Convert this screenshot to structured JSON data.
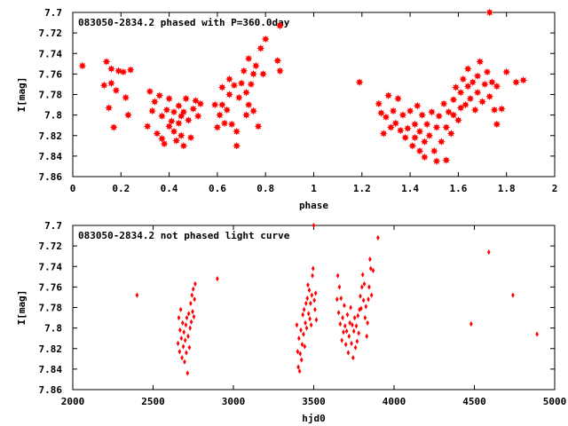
{
  "chart_data": [
    {
      "type": "scatter",
      "title": "083050-2834.2 phased with P=360.0day",
      "xlabel": "phase",
      "ylabel": "I[mag]",
      "xlim": [
        0,
        2
      ],
      "ylim": [
        7.7,
        7.86
      ],
      "y_inverted": true,
      "xticks": [
        0,
        0.2,
        0.4,
        0.6,
        0.8,
        1,
        1.2,
        1.4,
        1.6,
        1.8,
        2
      ],
      "xtick_labels": [
        "0",
        "0.2",
        "0.4",
        "0.6",
        "0.8",
        "1",
        "1.2",
        "1.4",
        "1.6",
        "1.8",
        "2"
      ],
      "yticks": [
        7.7,
        7.72,
        7.74,
        7.76,
        7.78,
        7.8,
        7.82,
        7.84,
        7.86
      ],
      "ytick_labels": [
        "7.7",
        "7.72",
        "7.74",
        "7.76",
        "7.78",
        "7.8",
        "7.82",
        "7.84",
        "7.86"
      ],
      "marker": "star",
      "color": "#ff0000",
      "points": [
        [
          0.04,
          7.752
        ],
        [
          0.13,
          7.771
        ],
        [
          0.14,
          7.748
        ],
        [
          0.15,
          7.793
        ],
        [
          0.16,
          7.769
        ],
        [
          0.16,
          7.755
        ],
        [
          0.17,
          7.812
        ],
        [
          0.18,
          7.776
        ],
        [
          0.19,
          7.757
        ],
        [
          0.21,
          7.758
        ],
        [
          0.22,
          7.783
        ],
        [
          0.23,
          7.8
        ],
        [
          0.24,
          7.756
        ],
        [
          0.31,
          7.811
        ],
        [
          0.32,
          7.777
        ],
        [
          0.33,
          7.796
        ],
        [
          0.34,
          7.787
        ],
        [
          0.35,
          7.818
        ],
        [
          0.36,
          7.781
        ],
        [
          0.37,
          7.823
        ],
        [
          0.37,
          7.801
        ],
        [
          0.38,
          7.828
        ],
        [
          0.39,
          7.795
        ],
        [
          0.4,
          7.811
        ],
        [
          0.4,
          7.784
        ],
        [
          0.41,
          7.806
        ],
        [
          0.42,
          7.797
        ],
        [
          0.42,
          7.816
        ],
        [
          0.43,
          7.825
        ],
        [
          0.44,
          7.791
        ],
        [
          0.44,
          7.808
        ],
        [
          0.45,
          7.82
        ],
        [
          0.45,
          7.801
        ],
        [
          0.46,
          7.83
        ],
        [
          0.46,
          7.797
        ],
        [
          0.47,
          7.784
        ],
        [
          0.48,
          7.805
        ],
        [
          0.49,
          7.822
        ],
        [
          0.5,
          7.794
        ],
        [
          0.51,
          7.786
        ],
        [
          0.52,
          7.801
        ],
        [
          0.53,
          7.789
        ],
        [
          0.59,
          7.79
        ],
        [
          0.6,
          7.812
        ],
        [
          0.61,
          7.8
        ],
        [
          0.62,
          7.79
        ],
        [
          0.62,
          7.773
        ],
        [
          0.63,
          7.808
        ],
        [
          0.64,
          7.795
        ],
        [
          0.65,
          7.765
        ],
        [
          0.65,
          7.78
        ],
        [
          0.66,
          7.809
        ],
        [
          0.67,
          7.771
        ],
        [
          0.68,
          7.83
        ],
        [
          0.68,
          7.816
        ],
        [
          0.69,
          7.783
        ],
        [
          0.7,
          7.769
        ],
        [
          0.71,
          7.757
        ],
        [
          0.72,
          7.8
        ],
        [
          0.72,
          7.778
        ],
        [
          0.73,
          7.745
        ],
        [
          0.73,
          7.79
        ],
        [
          0.74,
          7.77
        ],
        [
          0.75,
          7.796
        ],
        [
          0.75,
          7.76
        ],
        [
          0.76,
          7.752
        ],
        [
          0.77,
          7.811
        ],
        [
          0.78,
          7.735
        ],
        [
          0.79,
          7.76
        ],
        [
          0.8,
          7.726
        ],
        [
          0.85,
          7.747
        ],
        [
          0.86,
          7.757
        ],
        [
          0.86,
          7.713
        ],
        [
          1.19,
          7.768
        ],
        [
          1.27,
          7.789
        ],
        [
          1.28,
          7.798
        ],
        [
          1.29,
          7.818
        ],
        [
          1.3,
          7.802
        ],
        [
          1.31,
          7.781
        ],
        [
          1.32,
          7.812
        ],
        [
          1.33,
          7.796
        ],
        [
          1.34,
          7.808
        ],
        [
          1.35,
          7.784
        ],
        [
          1.36,
          7.815
        ],
        [
          1.37,
          7.8
        ],
        [
          1.38,
          7.822
        ],
        [
          1.39,
          7.813
        ],
        [
          1.4,
          7.796
        ],
        [
          1.41,
          7.83
        ],
        [
          1.42,
          7.809
        ],
        [
          1.42,
          7.822
        ],
        [
          1.43,
          7.791
        ],
        [
          1.44,
          7.835
        ],
        [
          1.44,
          7.816
        ],
        [
          1.45,
          7.8
        ],
        [
          1.46,
          7.826
        ],
        [
          1.46,
          7.841
        ],
        [
          1.47,
          7.809
        ],
        [
          1.48,
          7.82
        ],
        [
          1.49,
          7.797
        ],
        [
          1.5,
          7.835
        ],
        [
          1.51,
          7.812
        ],
        [
          1.51,
          7.845
        ],
        [
          1.52,
          7.801
        ],
        [
          1.53,
          7.826
        ],
        [
          1.54,
          7.789
        ],
        [
          1.55,
          7.812
        ],
        [
          1.55,
          7.844
        ],
        [
          1.56,
          7.797
        ],
        [
          1.57,
          7.818
        ],
        [
          1.58,
          7.785
        ],
        [
          1.58,
          7.8
        ],
        [
          1.59,
          7.773
        ],
        [
          1.6,
          7.805
        ],
        [
          1.61,
          7.778
        ],
        [
          1.61,
          7.793
        ],
        [
          1.62,
          7.765
        ],
        [
          1.63,
          7.79
        ],
        [
          1.64,
          7.772
        ],
        [
          1.64,
          7.755
        ],
        [
          1.65,
          7.784
        ],
        [
          1.66,
          7.768
        ],
        [
          1.67,
          7.795
        ],
        [
          1.68,
          7.762
        ],
        [
          1.68,
          7.778
        ],
        [
          1.69,
          7.748
        ],
        [
          1.7,
          7.787
        ],
        [
          1.71,
          7.77
        ],
        [
          1.72,
          7.758
        ],
        [
          1.73,
          7.7
        ],
        [
          1.73,
          7.782
        ],
        [
          1.74,
          7.768
        ],
        [
          1.75,
          7.795
        ],
        [
          1.76,
          7.772
        ],
        [
          1.76,
          7.809
        ],
        [
          1.78,
          7.794
        ],
        [
          1.8,
          7.758
        ],
        [
          1.84,
          7.768
        ],
        [
          1.87,
          7.766
        ]
      ]
    },
    {
      "type": "scatter",
      "title": "083050-2834.2 not phased light curve",
      "xlabel": "hjd0",
      "ylabel": "I[mag]",
      "xlim": [
        2000,
        5000
      ],
      "ylim": [
        7.7,
        7.86
      ],
      "y_inverted": true,
      "xticks": [
        2000,
        2500,
        3000,
        3500,
        4000,
        4500,
        5000
      ],
      "xtick_labels": [
        "2000",
        "2500",
        "3000",
        "3500",
        "4000",
        "4500",
        "5000"
      ],
      "yticks": [
        7.7,
        7.72,
        7.74,
        7.76,
        7.78,
        7.8,
        7.82,
        7.84,
        7.86
      ],
      "ytick_labels": [
        "7.7",
        "7.72",
        "7.74",
        "7.76",
        "7.78",
        "7.8",
        "7.82",
        "7.84",
        "7.86"
      ],
      "marker": "diamond",
      "color": "#ff0000",
      "points": [
        [
          2400,
          7.768
        ],
        [
          2655,
          7.815
        ],
        [
          2660,
          7.79
        ],
        [
          2665,
          7.823
        ],
        [
          2668,
          7.802
        ],
        [
          2672,
          7.782
        ],
        [
          2676,
          7.81
        ],
        [
          2680,
          7.829
        ],
        [
          2684,
          7.795
        ],
        [
          2688,
          7.818
        ],
        [
          2692,
          7.804
        ],
        [
          2696,
          7.833
        ],
        [
          2700,
          7.812
        ],
        [
          2704,
          7.797
        ],
        [
          2707,
          7.824
        ],
        [
          2710,
          7.79
        ],
        [
          2714,
          7.844
        ],
        [
          2718,
          7.808
        ],
        [
          2722,
          7.786
        ],
        [
          2726,
          7.819
        ],
        [
          2730,
          7.8
        ],
        [
          2734,
          7.776
        ],
        [
          2738,
          7.794
        ],
        [
          2742,
          7.768
        ],
        [
          2746,
          7.784
        ],
        [
          2750,
          7.762
        ],
        [
          2754,
          7.789
        ],
        [
          2758,
          7.772
        ],
        [
          2762,
          7.757
        ],
        [
          2900,
          7.752
        ],
        [
          3395,
          7.797
        ],
        [
          3400,
          7.823
        ],
        [
          3404,
          7.838
        ],
        [
          3408,
          7.81
        ],
        [
          3412,
          7.842
        ],
        [
          3416,
          7.825
        ],
        [
          3420,
          7.802
        ],
        [
          3424,
          7.831
        ],
        [
          3428,
          7.816
        ],
        [
          3432,
          7.787
        ],
        [
          3436,
          7.806
        ],
        [
          3440,
          7.782
        ],
        [
          3444,
          7.818
        ],
        [
          3448,
          7.795
        ],
        [
          3452,
          7.776
        ],
        [
          3456,
          7.8
        ],
        [
          3460,
          7.771
        ],
        [
          3464,
          7.758
        ],
        [
          3468,
          7.786
        ],
        [
          3472,
          7.763
        ],
        [
          3476,
          7.791
        ],
        [
          3480,
          7.776
        ],
        [
          3484,
          7.797
        ],
        [
          3488,
          7.768
        ],
        [
          3492,
          7.749
        ],
        [
          3496,
          7.742
        ],
        [
          3500,
          7.7
        ],
        [
          3504,
          7.773
        ],
        [
          3508,
          7.782
        ],
        [
          3512,
          7.766
        ],
        [
          3516,
          7.792
        ],
        [
          3645,
          7.772
        ],
        [
          3650,
          7.749
        ],
        [
          3655,
          7.785
        ],
        [
          3660,
          7.76
        ],
        [
          3665,
          7.796
        ],
        [
          3670,
          7.771
        ],
        [
          3675,
          7.812
        ],
        [
          3680,
          7.79
        ],
        [
          3685,
          7.804
        ],
        [
          3690,
          7.778
        ],
        [
          3695,
          7.798
        ],
        [
          3700,
          7.816
        ],
        [
          3705,
          7.803
        ],
        [
          3710,
          7.787
        ],
        [
          3715,
          7.824
        ],
        [
          3720,
          7.808
        ],
        [
          3725,
          7.795
        ],
        [
          3730,
          7.78
        ],
        [
          3735,
          7.815
        ],
        [
          3740,
          7.797
        ],
        [
          3745,
          7.829
        ],
        [
          3750,
          7.803
        ],
        [
          3755,
          7.79
        ],
        [
          3760,
          7.819
        ],
        [
          3765,
          7.798
        ],
        [
          3770,
          7.813
        ],
        [
          3775,
          7.788
        ],
        [
          3780,
          7.805
        ],
        [
          3785,
          7.782
        ],
        [
          3790,
          7.769
        ],
        [
          3795,
          7.781
        ],
        [
          3800,
          7.76
        ],
        [
          3805,
          7.748
        ],
        [
          3810,
          7.773
        ],
        [
          3815,
          7.757
        ],
        [
          3820,
          7.79
        ],
        [
          3825,
          7.779
        ],
        [
          3830,
          7.808
        ],
        [
          3835,
          7.795
        ],
        [
          3840,
          7.772
        ],
        [
          3845,
          7.76
        ],
        [
          3850,
          7.733
        ],
        [
          3855,
          7.742
        ],
        [
          3860,
          7.768
        ],
        [
          3870,
          7.744
        ],
        [
          3900,
          7.712
        ],
        [
          4480,
          7.796
        ],
        [
          4590,
          7.726
        ],
        [
          4740,
          7.768
        ],
        [
          4890,
          7.806
        ]
      ]
    }
  ]
}
